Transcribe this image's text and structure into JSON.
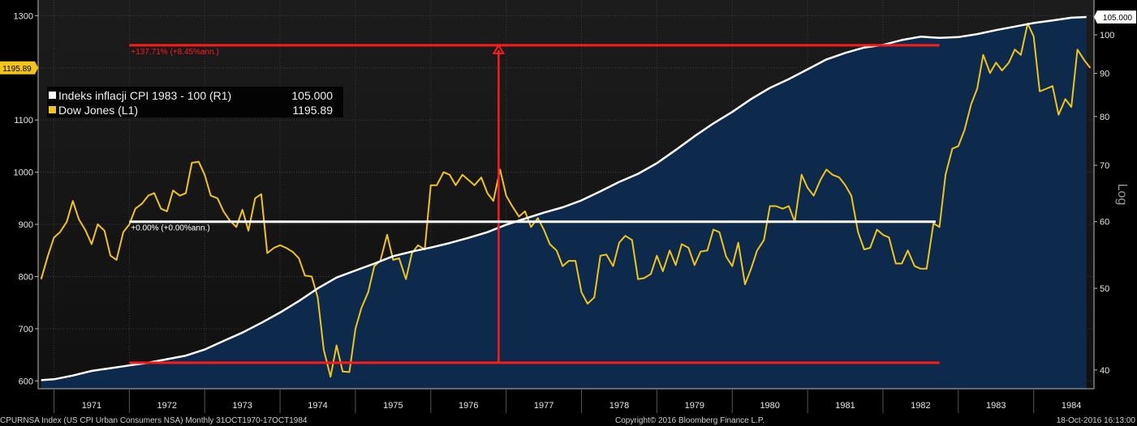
{
  "chart_data": {
    "type": "line",
    "axes": {
      "left": {
        "label": "",
        "ticks": [
          600,
          700,
          800,
          900,
          1000,
          1100,
          1200,
          1300
        ],
        "range": [
          585,
          1330
        ],
        "scale": "linear"
      },
      "right": {
        "label": "Log",
        "ticks": [
          40,
          50,
          60,
          70,
          80,
          90,
          100
        ],
        "range": [
          38,
          110
        ],
        "scale": "log"
      },
      "x": {
        "range": [
          1970.79,
          1984.8
        ],
        "year_labels": [
          "1971",
          "1972",
          "1973",
          "1974",
          "1975",
          "1976",
          "1977",
          "1978",
          "1979",
          "1980",
          "1981",
          "1982",
          "1983",
          "1984"
        ]
      }
    },
    "legend": {
      "placement": "top-left",
      "items": [
        {
          "label": "Indeks inflacji CPI 1983 - 100 (R1)",
          "value": "105.000",
          "color": "#ffffff"
        },
        {
          "label": "Dow Jones (L1)",
          "value": "1195.89",
          "color": "#f0c419"
        }
      ]
    },
    "last_value_tags": {
      "left": "1195.89",
      "right": "105.000"
    },
    "series": [
      {
        "name": "Indeks inflacji CPI 1983 - 100 (R1)",
        "axis": "right",
        "color": "#ffffff",
        "fill": "#0d2a4c",
        "points": [
          [
            1970.83,
            38.9
          ],
          [
            1971.0,
            39.0
          ],
          [
            1971.25,
            39.4
          ],
          [
            1971.5,
            39.9
          ],
          [
            1971.75,
            40.2
          ],
          [
            1972.0,
            40.5
          ],
          [
            1972.25,
            40.8
          ],
          [
            1972.5,
            41.2
          ],
          [
            1972.75,
            41.6
          ],
          [
            1973.0,
            42.3
          ],
          [
            1973.25,
            43.3
          ],
          [
            1973.5,
            44.3
          ],
          [
            1973.75,
            45.5
          ],
          [
            1974.0,
            46.8
          ],
          [
            1974.25,
            48.3
          ],
          [
            1974.5,
            50.0
          ],
          [
            1974.75,
            51.5
          ],
          [
            1975.0,
            52.5
          ],
          [
            1975.25,
            53.5
          ],
          [
            1975.5,
            54.6
          ],
          [
            1975.75,
            55.3
          ],
          [
            1976.0,
            55.9
          ],
          [
            1976.25,
            56.6
          ],
          [
            1976.5,
            57.4
          ],
          [
            1976.75,
            58.3
          ],
          [
            1977.0,
            59.5
          ],
          [
            1977.25,
            60.5
          ],
          [
            1977.5,
            61.5
          ],
          [
            1977.75,
            62.4
          ],
          [
            1978.0,
            63.6
          ],
          [
            1978.25,
            65.2
          ],
          [
            1978.5,
            66.9
          ],
          [
            1978.75,
            68.4
          ],
          [
            1979.0,
            70.4
          ],
          [
            1979.25,
            73.0
          ],
          [
            1979.5,
            75.8
          ],
          [
            1979.75,
            78.5
          ],
          [
            1980.0,
            81.0
          ],
          [
            1980.25,
            83.9
          ],
          [
            1980.5,
            86.5
          ],
          [
            1980.75,
            88.6
          ],
          [
            1981.0,
            91.0
          ],
          [
            1981.25,
            93.5
          ],
          [
            1981.5,
            95.2
          ],
          [
            1981.75,
            96.6
          ],
          [
            1982.0,
            97.3
          ],
          [
            1982.25,
            98.6
          ],
          [
            1982.5,
            99.5
          ],
          [
            1982.75,
            99.2
          ],
          [
            1983.0,
            99.4
          ],
          [
            1983.25,
            100.2
          ],
          [
            1983.5,
            101.3
          ],
          [
            1983.75,
            102.3
          ],
          [
            1984.0,
            103.3
          ],
          [
            1984.25,
            104.0
          ],
          [
            1984.5,
            104.8
          ],
          [
            1984.7,
            105.0
          ]
        ]
      },
      {
        "name": "Dow Jones (L1)",
        "axis": "left",
        "color": "#f0c419",
        "points": [
          [
            1970.83,
            795
          ],
          [
            1970.92,
            840
          ],
          [
            1971.0,
            875
          ],
          [
            1971.08,
            885
          ],
          [
            1971.17,
            905
          ],
          [
            1971.25,
            945
          ],
          [
            1971.33,
            910
          ],
          [
            1971.42,
            888
          ],
          [
            1971.5,
            862
          ],
          [
            1971.58,
            900
          ],
          [
            1971.67,
            888
          ],
          [
            1971.75,
            840
          ],
          [
            1971.83,
            832
          ],
          [
            1971.92,
            885
          ],
          [
            1972.0,
            900
          ],
          [
            1972.08,
            930
          ],
          [
            1972.17,
            940
          ],
          [
            1972.25,
            955
          ],
          [
            1972.33,
            960
          ],
          [
            1972.42,
            930
          ],
          [
            1972.5,
            925
          ],
          [
            1972.58,
            965
          ],
          [
            1972.67,
            955
          ],
          [
            1972.75,
            960
          ],
          [
            1972.83,
            1018
          ],
          [
            1972.92,
            1020
          ],
          [
            1973.0,
            995
          ],
          [
            1973.08,
            955
          ],
          [
            1973.17,
            950
          ],
          [
            1973.25,
            925
          ],
          [
            1973.33,
            908
          ],
          [
            1973.42,
            895
          ],
          [
            1973.5,
            928
          ],
          [
            1973.58,
            888
          ],
          [
            1973.67,
            950
          ],
          [
            1973.75,
            958
          ],
          [
            1973.83,
            845
          ],
          [
            1973.92,
            855
          ],
          [
            1974.0,
            860
          ],
          [
            1974.08,
            855
          ],
          [
            1974.17,
            847
          ],
          [
            1974.25,
            835
          ],
          [
            1974.33,
            802
          ],
          [
            1974.42,
            800
          ],
          [
            1974.5,
            760
          ],
          [
            1974.58,
            660
          ],
          [
            1974.67,
            608
          ],
          [
            1974.75,
            668
          ],
          [
            1974.83,
            618
          ],
          [
            1974.92,
            617
          ],
          [
            1975.0,
            700
          ],
          [
            1975.08,
            740
          ],
          [
            1975.17,
            770
          ],
          [
            1975.25,
            820
          ],
          [
            1975.33,
            830
          ],
          [
            1975.42,
            880
          ],
          [
            1975.5,
            832
          ],
          [
            1975.58,
            835
          ],
          [
            1975.67,
            795
          ],
          [
            1975.75,
            845
          ],
          [
            1975.83,
            860
          ],
          [
            1975.92,
            852
          ],
          [
            1976.0,
            975
          ],
          [
            1976.08,
            975
          ],
          [
            1976.17,
            1000
          ],
          [
            1976.25,
            995
          ],
          [
            1976.33,
            975
          ],
          [
            1976.42,
            995
          ],
          [
            1976.5,
            985
          ],
          [
            1976.58,
            975
          ],
          [
            1976.67,
            990
          ],
          [
            1976.75,
            960
          ],
          [
            1976.83,
            945
          ],
          [
            1976.92,
            1005
          ],
          [
            1977.0,
            955
          ],
          [
            1977.08,
            935
          ],
          [
            1977.17,
            915
          ],
          [
            1977.25,
            925
          ],
          [
            1977.33,
            895
          ],
          [
            1977.42,
            912
          ],
          [
            1977.5,
            890
          ],
          [
            1977.58,
            862
          ],
          [
            1977.67,
            850
          ],
          [
            1977.75,
            820
          ],
          [
            1977.83,
            830
          ],
          [
            1977.92,
            830
          ],
          [
            1978.0,
            770
          ],
          [
            1978.08,
            748
          ],
          [
            1978.17,
            760
          ],
          [
            1978.25,
            840
          ],
          [
            1978.33,
            842
          ],
          [
            1978.42,
            820
          ],
          [
            1978.5,
            865
          ],
          [
            1978.58,
            878
          ],
          [
            1978.67,
            870
          ],
          [
            1978.75,
            795
          ],
          [
            1978.83,
            797
          ],
          [
            1978.92,
            805
          ],
          [
            1979.0,
            840
          ],
          [
            1979.08,
            810
          ],
          [
            1979.17,
            850
          ],
          [
            1979.25,
            822
          ],
          [
            1979.33,
            862
          ],
          [
            1979.42,
            855
          ],
          [
            1979.5,
            822
          ],
          [
            1979.58,
            848
          ],
          [
            1979.67,
            850
          ],
          [
            1979.75,
            890
          ],
          [
            1979.83,
            885
          ],
          [
            1979.92,
            838
          ],
          [
            1980.0,
            820
          ],
          [
            1980.08,
            865
          ],
          [
            1980.17,
            785
          ],
          [
            1980.25,
            815
          ],
          [
            1980.33,
            850
          ],
          [
            1980.42,
            870
          ],
          [
            1980.5,
            935
          ],
          [
            1980.58,
            935
          ],
          [
            1980.67,
            930
          ],
          [
            1980.75,
            935
          ],
          [
            1980.83,
            905
          ],
          [
            1980.92,
            995
          ],
          [
            1981.0,
            970
          ],
          [
            1981.08,
            955
          ],
          [
            1981.17,
            985
          ],
          [
            1981.25,
            1005
          ],
          [
            1981.33,
            995
          ],
          [
            1981.42,
            990
          ],
          [
            1981.5,
            975
          ],
          [
            1981.58,
            955
          ],
          [
            1981.67,
            885
          ],
          [
            1981.75,
            852
          ],
          [
            1981.83,
            855
          ],
          [
            1981.92,
            890
          ],
          [
            1982.0,
            880
          ],
          [
            1982.08,
            875
          ],
          [
            1982.17,
            825
          ],
          [
            1982.25,
            825
          ],
          [
            1982.33,
            850
          ],
          [
            1982.42,
            820
          ],
          [
            1982.5,
            815
          ],
          [
            1982.58,
            815
          ],
          [
            1982.67,
            902
          ],
          [
            1982.75,
            895
          ],
          [
            1982.83,
            995
          ],
          [
            1982.92,
            1045
          ],
          [
            1983.0,
            1050
          ],
          [
            1983.08,
            1080
          ],
          [
            1983.17,
            1130
          ],
          [
            1983.25,
            1160
          ],
          [
            1983.33,
            1225
          ],
          [
            1983.42,
            1190
          ],
          [
            1983.5,
            1210
          ],
          [
            1983.58,
            1195
          ],
          [
            1983.67,
            1210
          ],
          [
            1983.75,
            1235
          ],
          [
            1983.83,
            1225
          ],
          [
            1983.92,
            1285
          ],
          [
            1984.0,
            1260
          ],
          [
            1984.08,
            1155
          ],
          [
            1984.17,
            1160
          ],
          [
            1984.25,
            1165
          ],
          [
            1984.33,
            1110
          ],
          [
            1984.42,
            1140
          ],
          [
            1984.5,
            1125
          ],
          [
            1984.58,
            1235
          ],
          [
            1984.67,
            1215
          ],
          [
            1984.75,
            1200
          ]
        ]
      }
    ],
    "annotations": [
      {
        "name": "upper-level-line",
        "axis": "right",
        "x1": 1972.0,
        "x2": 1982.75,
        "y": 97.2,
        "label": "+137.71% (+8.45%ann.)",
        "color": "#ff1a1a"
      },
      {
        "name": "lower-level-line",
        "axis": "right",
        "x1": 1972.0,
        "x2": 1982.75,
        "y": 40.8,
        "label": "",
        "color": "#ff1a1a"
      },
      {
        "name": "vertical-arrow",
        "axis": "right",
        "x": 1976.9,
        "y1": 40.8,
        "y2": 97.2,
        "color": "#ff1a1a"
      },
      {
        "name": "mid-level-line",
        "axis": "right",
        "x1": 1972.0,
        "x2": 1982.7,
        "y": 60.0,
        "label": "+0.00% (+0.00%ann.)",
        "color": "#ffffff"
      }
    ],
    "footer": {
      "left": "CPURNSA Index (US CPI Urban Consumers NSA)  Monthly 31OCT1970-17OCT1984",
      "center": "Copyright© 2016 Bloomberg Finance L.P.",
      "right": "18-Oct-2016 16:13:00"
    }
  }
}
